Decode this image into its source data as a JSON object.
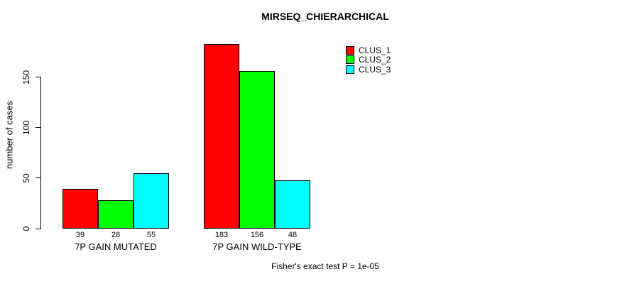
{
  "chart_data": {
    "type": "bar",
    "title": "MIRSEQ_CHIERARCHICAL",
    "ylabel": "number of cases",
    "xlabel": "",
    "categories": [
      "7P GAIN MUTATED",
      "7P GAIN WILD-TYPE"
    ],
    "series": [
      {
        "name": "CLUS_1",
        "color": "#ff0000",
        "values": [
          39,
          183
        ]
      },
      {
        "name": "CLUS_2",
        "color": "#00ff00",
        "values": [
          28,
          156
        ]
      },
      {
        "name": "CLUS_3",
        "color": "#00ffff",
        "values": [
          55,
          48
        ]
      }
    ],
    "yticks": [
      0,
      50,
      100,
      150
    ],
    "ylim": [
      0,
      150
    ],
    "grid": false,
    "bar_value_labels_shown": true,
    "legend": {
      "position": "top-right",
      "entries": [
        "CLUS_1",
        "CLUS_2",
        "CLUS_3"
      ]
    },
    "annotation": "Fisher's exact test P = 1e-05"
  }
}
